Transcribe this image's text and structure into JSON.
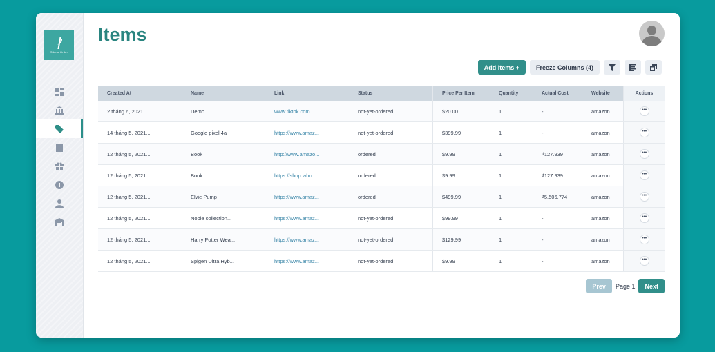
{
  "logo": {
    "text": "Sdoria Order"
  },
  "page": {
    "title": "Items"
  },
  "toolbar": {
    "add_label": "Add items +",
    "freeze_label": "Freeze Columns (4)"
  },
  "table": {
    "headers": [
      "Created At",
      "Name",
      "Link",
      "Status",
      "Price Per Item",
      "Quantity",
      "Actual Cost",
      "Website",
      "Actions"
    ],
    "rows": [
      [
        "2 tháng 6, 2021",
        "Demo",
        "www.tiktok.com...",
        "not-yet-ordered",
        "$20.00",
        "1",
        "-",
        "amazon"
      ],
      [
        "14 tháng 5, 2021...",
        "Google pixel 4a",
        "https://www.amaz...",
        "not-yet-ordered",
        "$399.99",
        "1",
        "-",
        "amazon"
      ],
      [
        "12 tháng 5, 2021...",
        "Book",
        "http://www.amazo...",
        "ordered",
        "$9.99",
        "1",
        "₫127.939",
        "amazon"
      ],
      [
        "12 tháng 5, 2021...",
        "Book",
        "https://shop.who...",
        "ordered",
        "$9.99",
        "1",
        "₫127.939",
        "amazon"
      ],
      [
        "12 tháng 5, 2021...",
        "Elvie Pump",
        "https://www.amaz...",
        "ordered",
        "$499.99",
        "1",
        "₫5.506,774",
        "amazon"
      ],
      [
        "12 tháng 5, 2021...",
        "Noble collection...",
        "https://www.amaz...",
        "not-yet-ordered",
        "$99.99",
        "1",
        "-",
        "amazon"
      ],
      [
        "12 tháng 5, 2021...",
        "Harry Potter Wea...",
        "https://www.amaz...",
        "not-yet-ordered",
        "$129.99",
        "1",
        "-",
        "amazon"
      ],
      [
        "12 tháng 5, 2021...",
        "Spigen Ultra Hyb...",
        "https://www.amaz...",
        "not-yet-ordered",
        "$9.99",
        "1",
        "-",
        "amazon"
      ]
    ],
    "actions_glyph": "•••"
  },
  "pager": {
    "prev": "Prev",
    "page": "Page 1",
    "next": "Next"
  },
  "icons": [
    "dashboard-icon",
    "bank-icon",
    "tag-icon",
    "document-icon",
    "gift-icon",
    "coin-icon",
    "user-icon",
    "warehouse-icon",
    "filter-icon",
    "sort-icon",
    "copy-icon"
  ],
  "colors": {
    "background": "#089b9e",
    "accent": "#318f8a",
    "title": "#2a8580"
  }
}
